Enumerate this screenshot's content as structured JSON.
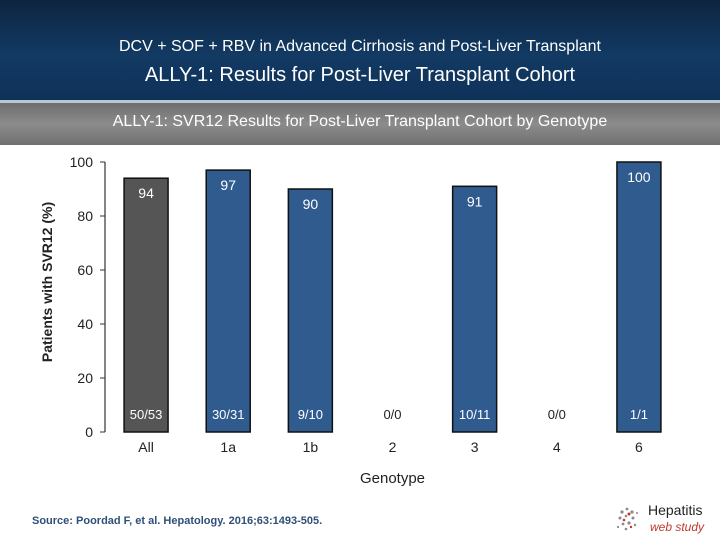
{
  "header": {
    "super": "DCV + SOF + RBV in Advanced Cirrhosis and Post-Liver Transplant",
    "title": "ALLY-1: Results for Post-Liver Transplant Cohort"
  },
  "subtitle": "ALLY-1: SVR12 Results for Post-Liver Transplant Cohort by Genotype",
  "chart_data": {
    "type": "bar",
    "title": "",
    "xlabel": "Genotype",
    "ylabel": "Patients with SVR12 (%)",
    "ylim": [
      0,
      100
    ],
    "yticks": [
      "0",
      "20",
      "40",
      "60",
      "80",
      "100"
    ],
    "categories": [
      "All",
      "1a",
      "1b",
      "2",
      "3",
      "4",
      "6"
    ],
    "values": [
      94,
      97,
      90,
      null,
      91,
      null,
      100
    ],
    "value_labels": [
      "94",
      "97",
      "90",
      "",
      "91",
      "",
      "100"
    ],
    "counts": [
      "50/53",
      "30/31",
      "9/10",
      "0/0",
      "10/11",
      "0/0",
      "1/1"
    ],
    "colors": [
      "#555555",
      "#2f5b8e",
      "#2f5b8e",
      "#2f5b8e",
      "#2f5b8e",
      "#2f5b8e",
      "#2f5b8e"
    ],
    "grid": false,
    "legend": "none"
  },
  "source": "Source: Poordad F, et al. Hepatology. 2016;63:1493-505.",
  "logo": {
    "title": "Hepatitis",
    "subtitle": "web study"
  }
}
